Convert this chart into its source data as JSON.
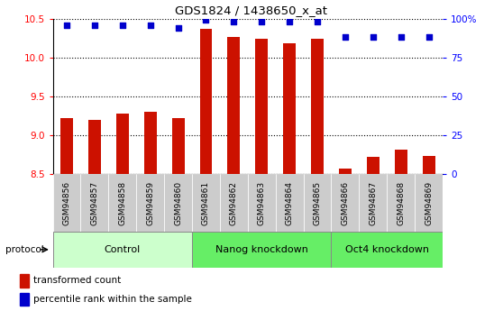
{
  "title": "GDS1824 / 1438650_x_at",
  "samples": [
    "GSM94856",
    "GSM94857",
    "GSM94858",
    "GSM94859",
    "GSM94860",
    "GSM94861",
    "GSM94862",
    "GSM94863",
    "GSM94864",
    "GSM94865",
    "GSM94866",
    "GSM94867",
    "GSM94868",
    "GSM94869"
  ],
  "bar_values": [
    9.22,
    9.2,
    9.28,
    9.3,
    9.22,
    10.37,
    10.27,
    10.24,
    10.18,
    10.24,
    8.57,
    8.72,
    8.82,
    8.74
  ],
  "percentile_values": [
    96,
    96,
    96,
    96,
    94,
    99,
    98,
    98,
    98,
    98,
    88,
    88,
    88,
    88
  ],
  "bar_color": "#cc1100",
  "dot_color": "#0000cc",
  "ylim_left": [
    8.5,
    10.5
  ],
  "ylim_right": [
    0,
    100
  ],
  "yticks_left": [
    8.5,
    9.0,
    9.5,
    10.0,
    10.5
  ],
  "ytick_labels_right": [
    "0",
    "25",
    "50",
    "75",
    "100%"
  ],
  "protocol_label": "protocol",
  "legend_bar_label": "transformed count",
  "legend_dot_label": "percentile rank within the sample",
  "group_control_color": "#ccffcc",
  "group_nanog_color": "#66ee66",
  "group_oct4_color": "#66ee66",
  "tick_bg_color": "#cccccc"
}
